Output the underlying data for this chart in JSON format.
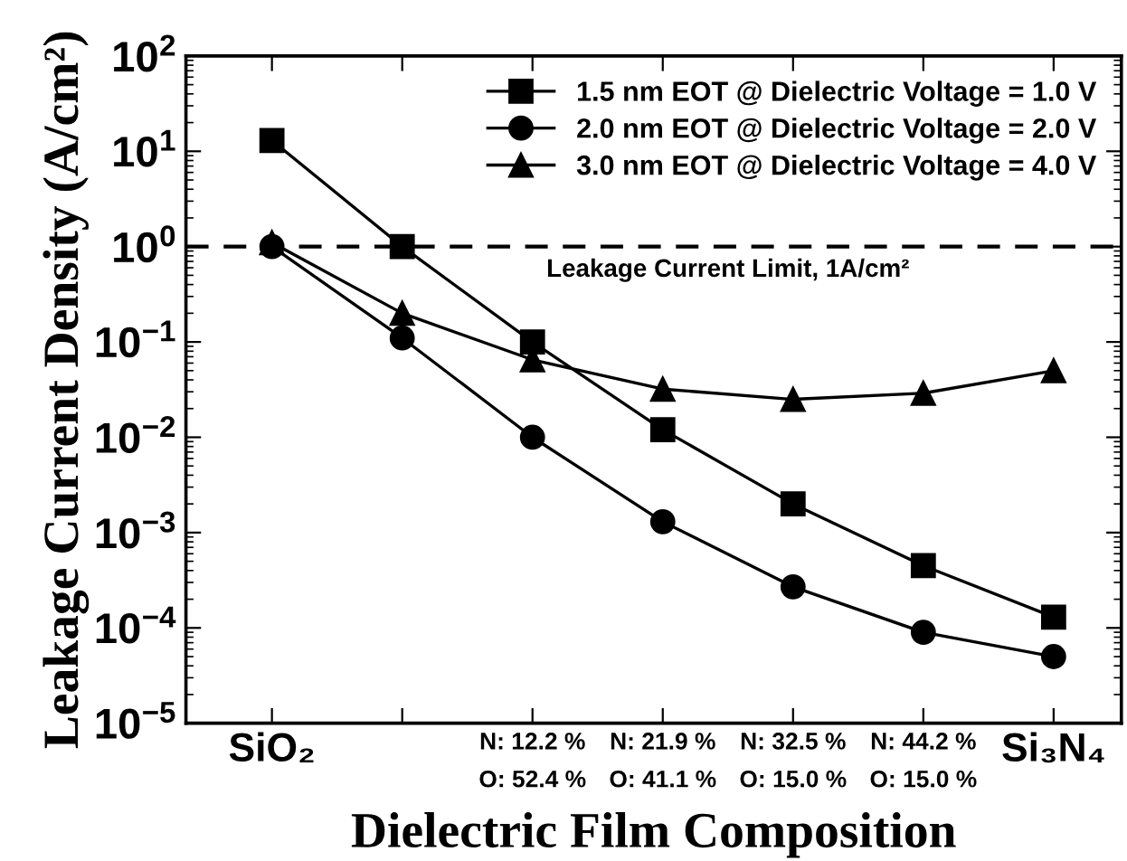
{
  "chart_data": {
    "type": "line",
    "xlabel": "Dielectric Film Composition",
    "ylabel": "Leakage Current Density (A/cm²)",
    "categories": [
      "SiO₂",
      null,
      "N: 12.2 %\nO: 52.4 %",
      "N: 21.9 %\nO: 41.1 %",
      "N: 32.5 %\nO: 15.0 %",
      "N: 44.2 %\nO: 15.0 %",
      "Si₃N₄"
    ],
    "series": [
      {
        "name": "1.5 nm EOT @ Dielectric Voltage = 1.0 V",
        "color": "#000000",
        "marker": "square",
        "values": [
          13,
          1.0,
          0.1,
          0.012,
          0.002,
          0.00045,
          0.00013
        ]
      },
      {
        "name": "2.0 nm EOT @ Dielectric Voltage = 2.0 V",
        "color": "#000000",
        "marker": "circle",
        "values": [
          1.0,
          0.11,
          0.01,
          0.0013,
          0.00027,
          9e-05,
          5e-05
        ]
      },
      {
        "name": "3.0 nm EOT @ Dielectric Voltage = 4.0 V",
        "color": "#000000",
        "marker": "triangle",
        "values": [
          1.1,
          0.2,
          0.065,
          0.032,
          0.025,
          0.029,
          0.05
        ]
      }
    ],
    "log": "y",
    "ylim": [
      1e-05,
      100
    ],
    "yticks": [
      {
        "value": 1e-05,
        "label": "10$^{−5}$"
      },
      {
        "value": 0.0001,
        "label": "10$^{−4}$"
      },
      {
        "value": 0.001,
        "label": "10$^{−3}$"
      },
      {
        "value": 0.01,
        "label": "10$^{−2}$"
      },
      {
        "value": 0.1,
        "label": "10$^{−1}$"
      },
      {
        "value": 1,
        "label": "10$^{0}$"
      },
      {
        "value": 10,
        "label": "10$^{1}$"
      },
      {
        "value": 100,
        "label": "10$^{2}$"
      }
    ],
    "ref_lines": [
      {
        "axis": "y",
        "value": 1,
        "label": "Leakage Current Limit, 1A/cm²",
        "color": "#000000",
        "line_style": "dashed"
      }
    ],
    "legend": "top right",
    "line_style": "solid",
    "grid": false
  }
}
